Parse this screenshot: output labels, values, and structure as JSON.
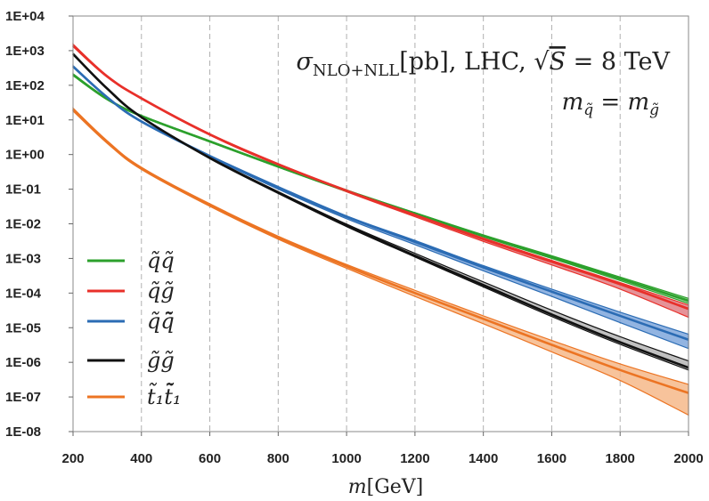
{
  "chart_data": {
    "type": "line",
    "title": "σNLO+NLL[pb], LHC, √S = 8 TeV",
    "title_parts": {
      "sigma": "σ",
      "sub": "NLO+NLL",
      "unit": "[pb], LHC, ",
      "root": "√",
      "s": "S",
      "eq": " = 8 TeV"
    },
    "annotation": "m_q̃ = m_g̃",
    "annotation_parts": {
      "m1": "m",
      "sub1": "q̃",
      "eq": " = ",
      "m2": "m",
      "sub2": "g̃"
    },
    "xlabel": "m[GeV]",
    "xlabel_parts": {
      "m": "m",
      "unit": "[GeV]"
    },
    "ylabel": "",
    "x_scale": "linear",
    "y_scale": "log",
    "xlim": [
      200,
      2000
    ],
    "ylim": [
      1e-08,
      10000.0
    ],
    "x_ticks": [
      200,
      400,
      600,
      800,
      1000,
      1200,
      1400,
      1600,
      1800,
      2000
    ],
    "x_tick_labels": [
      "200",
      "400",
      "600",
      "800",
      "1000",
      "1200",
      "1400",
      "1600",
      "1800",
      "2000"
    ],
    "y_ticks": [
      10000.0,
      1000.0,
      100.0,
      10.0,
      1,
      0.1,
      0.01,
      0.001,
      0.0001,
      1e-05,
      1e-06,
      1e-07,
      1e-08
    ],
    "y_tick_labels": [
      "1E+04",
      "1E+03",
      "1E+02",
      "1E+01",
      "1E+00",
      "1E-01",
      "1E-02",
      "1E-03",
      "1E-04",
      "1E-05",
      "1E-06",
      "1E-07",
      "1E-08"
    ],
    "grid": "vertical dashed",
    "legend_position": "left",
    "series": [
      {
        "name": "q̃q̃",
        "color": "#2ca02c",
        "band_color": "#8fd08f",
        "x": [
          200,
          300,
          400,
          600,
          800,
          1000,
          1200,
          1400,
          1600,
          1800,
          2000
        ],
        "central": [
          200,
          40,
          13,
          2.4,
          0.45,
          0.09,
          0.02,
          0.0045,
          0.0011,
          0.00026,
          6e-05
        ],
        "lower": [
          190,
          38,
          12.5,
          2.3,
          0.43,
          0.085,
          0.019,
          0.0042,
          0.001,
          0.00023,
          5e-05
        ],
        "upper": [
          215,
          42,
          13.6,
          2.5,
          0.47,
          0.095,
          0.021,
          0.0048,
          0.0012,
          0.00029,
          7e-05
        ]
      },
      {
        "name": "q̃g̃",
        "color": "#e8302a",
        "band_color": "#e07f86",
        "x": [
          200,
          300,
          400,
          600,
          800,
          1000,
          1200,
          1400,
          1600,
          1800,
          2000
        ],
        "central": [
          1400,
          180,
          42,
          3.8,
          0.52,
          0.09,
          0.018,
          0.0036,
          0.0008,
          0.00018,
          3.5e-05
        ],
        "lower": [
          1300,
          170,
          40,
          3.6,
          0.49,
          0.084,
          0.016,
          0.0031,
          0.00065,
          0.00013,
          2e-05
        ],
        "upper": [
          1550,
          190,
          44,
          4.0,
          0.55,
          0.095,
          0.019,
          0.0039,
          0.00088,
          0.0002,
          4.5e-05
        ]
      },
      {
        "name": "q̃q̃̄",
        "color": "#2b6cb4",
        "band_color": "#7fa7dc",
        "x": [
          200,
          300,
          400,
          600,
          800,
          1000,
          1200,
          1400,
          1600,
          1800,
          2000
        ],
        "central": [
          350,
          45,
          9,
          0.9,
          0.11,
          0.016,
          0.003,
          0.00055,
          0.00011,
          2.2e-05,
          4.5e-06
        ],
        "lower": [
          330,
          43,
          8.6,
          0.86,
          0.1,
          0.014,
          0.0025,
          0.00044,
          8e-05,
          1.4e-05,
          2.5e-06
        ],
        "upper": [
          370,
          47,
          9.4,
          0.95,
          0.12,
          0.017,
          0.0033,
          0.00062,
          0.00013,
          2.8e-05,
          6.5e-06
        ]
      },
      {
        "name": "g̃g̃",
        "color": "#111111",
        "band_color": "#b5b5b5",
        "x": [
          200,
          300,
          400,
          600,
          800,
          1000,
          1200,
          1400,
          1600,
          1800,
          2000
        ],
        "central": [
          800,
          80,
          12,
          0.8,
          0.08,
          0.009,
          0.0012,
          0.00017,
          2.4e-05,
          3.8e-06,
          7e-07
        ],
        "lower": [
          760,
          76,
          11.5,
          0.76,
          0.075,
          0.0083,
          0.0011,
          0.00015,
          2.1e-05,
          3.3e-06,
          6e-07
        ],
        "upper": [
          840,
          84,
          12.5,
          0.84,
          0.085,
          0.0098,
          0.0014,
          0.00021,
          3.2e-05,
          5.5e-06,
          1.1e-06
        ]
      },
      {
        "name": "t̃₁t̃̄₁",
        "color": "#ec7423",
        "band_color": "#f6b98a",
        "x": [
          200,
          300,
          400,
          600,
          800,
          1000,
          1200,
          1400,
          1600,
          1800,
          2000
        ],
        "central": [
          20,
          2.3,
          0.4,
          0.035,
          0.004,
          0.0006,
          0.0001,
          1.8e-05,
          3.2e-06,
          6e-07,
          1.3e-07
        ],
        "lower": [
          18,
          2.1,
          0.37,
          0.032,
          0.0036,
          0.00052,
          8e-05,
          1.3e-05,
          2e-06,
          3e-07,
          3e-08
        ],
        "upper": [
          22,
          2.5,
          0.43,
          0.038,
          0.0044,
          0.00067,
          0.00012,
          2.2e-05,
          4.3e-06,
          9e-07,
          2.3e-07
        ]
      }
    ]
  }
}
